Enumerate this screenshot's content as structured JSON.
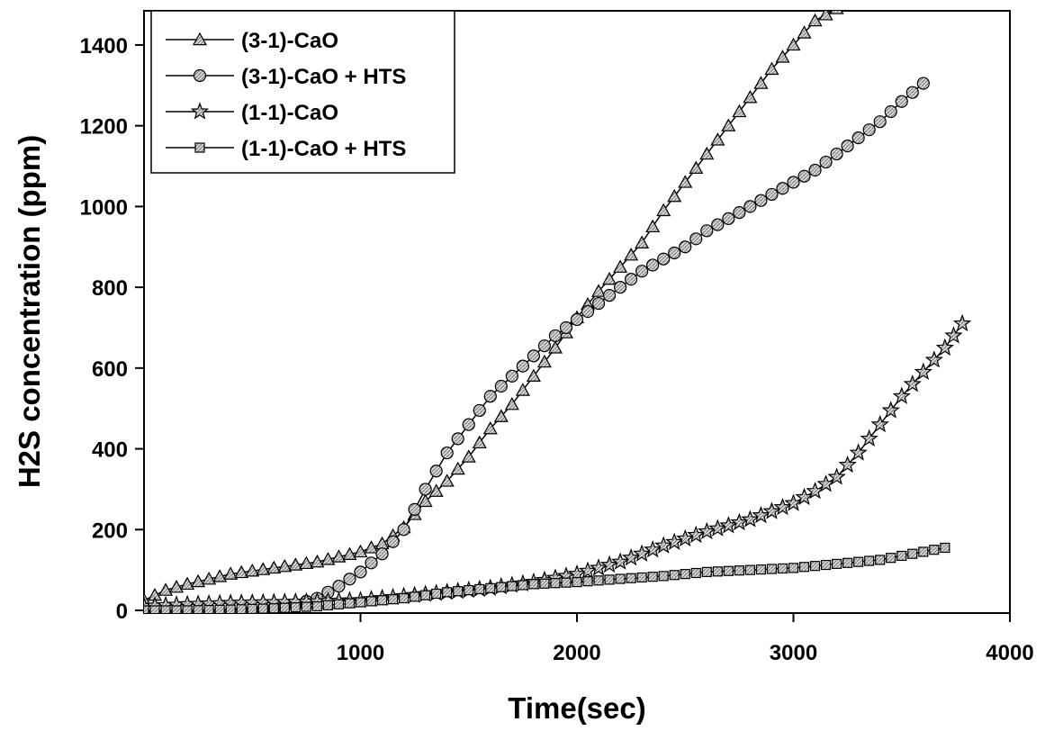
{
  "chart_data": {
    "type": "line",
    "xlabel": "Time(sec)",
    "ylabel": "H2S concentration (ppm)",
    "xlim": [
      0,
      4000
    ],
    "ylim": [
      0,
      1500
    ],
    "xticks": [
      1000,
      2000,
      3000,
      4000
    ],
    "yticks": [
      0,
      200,
      400,
      600,
      800,
      1000,
      1200,
      1400
    ],
    "grid": false,
    "legend_position": "top-left",
    "series": [
      {
        "name": "(3-1)-CaO",
        "marker": "triangle",
        "x": [
          0,
          100,
          200,
          400,
          600,
          800,
          1000,
          1100,
          1200,
          1300,
          1400,
          1500,
          1600,
          1700,
          1800,
          1900,
          2000,
          2100,
          2200,
          2300,
          2400,
          2500,
          2600,
          2700,
          2800,
          2900,
          3000,
          3100,
          3200
        ],
        "y": [
          25,
          50,
          65,
          90,
          105,
          120,
          145,
          165,
          205,
          270,
          320,
          380,
          450,
          510,
          580,
          650,
          725,
          790,
          850,
          910,
          990,
          1060,
          1130,
          1200,
          1270,
          1340,
          1400,
          1460,
          1490
        ]
      },
      {
        "name": "(3-1)-CaO + HTS",
        "marker": "circle",
        "x": [
          0,
          200,
          400,
          600,
          700,
          800,
          900,
          1000,
          1100,
          1200,
          1300,
          1400,
          1500,
          1600,
          1700,
          1800,
          1900,
          2000,
          2100,
          2200,
          2300,
          2400,
          2500,
          2600,
          2700,
          2800,
          2900,
          3000,
          3100,
          3200,
          3300,
          3400,
          3500,
          3600
        ],
        "y": [
          -10,
          -8,
          -5,
          5,
          15,
          30,
          60,
          95,
          140,
          200,
          300,
          390,
          460,
          530,
          580,
          630,
          680,
          720,
          760,
          800,
          840,
          870,
          900,
          940,
          970,
          1000,
          1030,
          1060,
          1090,
          1130,
          1170,
          1210,
          1260,
          1305
        ]
      },
      {
        "name": "(1-1)-CaO",
        "marker": "star",
        "x": [
          0,
          200,
          400,
          600,
          800,
          1000,
          1200,
          1400,
          1600,
          1800,
          2000,
          2200,
          2400,
          2600,
          2800,
          2900,
          3000,
          3100,
          3200,
          3300,
          3400,
          3500,
          3600,
          3700,
          3780
        ],
        "y": [
          10,
          15,
          18,
          20,
          22,
          25,
          35,
          45,
          55,
          70,
          90,
          120,
          160,
          195,
          225,
          245,
          265,
          295,
          330,
          390,
          460,
          530,
          590,
          650,
          710
        ]
      },
      {
        "name": "(1-1)-CaO + HTS",
        "marker": "square",
        "x": [
          0,
          200,
          400,
          600,
          800,
          1000,
          1200,
          1400,
          1600,
          1800,
          2000,
          2200,
          2400,
          2600,
          2800,
          3000,
          3200,
          3400,
          3500,
          3600,
          3700
        ],
        "y": [
          0,
          0,
          2,
          5,
          10,
          20,
          30,
          45,
          55,
          65,
          70,
          78,
          85,
          95,
          100,
          105,
          115,
          125,
          135,
          145,
          155
        ]
      }
    ]
  }
}
